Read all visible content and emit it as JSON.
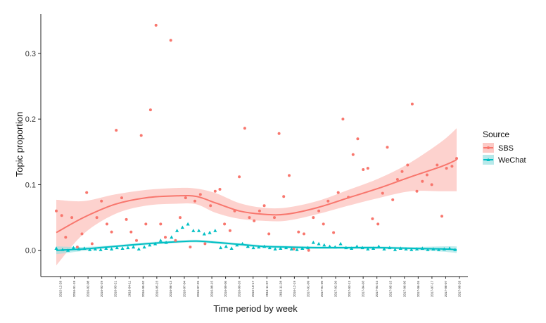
{
  "chart_data": {
    "type": "scatter",
    "title": "",
    "xlabel": "Time period by week",
    "ylabel": "Topic proportion",
    "ylim": [
      -0.04,
      0.36
    ],
    "yticks": [
      0.0,
      0.1,
      0.2,
      0.3
    ],
    "ytick_labels": [
      "0.0",
      "0.1",
      "0.2",
      "0.3"
    ],
    "grid": false,
    "legend": {
      "title": "Source",
      "position": "right",
      "entries": [
        "SBS",
        "WeChat"
      ]
    },
    "x_tick_labels": [
      "2015-12-28",
      "2016-01-18",
      "2016-02-08",
      "2016-02-29",
      "2016-03-21",
      "2016-04-11",
      "2016-05-02",
      "2016-05-23",
      "2016-06-13",
      "2016-07-04",
      "2016-07-25",
      "2016-08-15",
      "2016-09-05",
      "2016-09-26",
      "2016-10-17",
      "2016-11-07",
      "2016-11-28",
      "2016-12-19",
      "2017-01-09",
      "2017-01-30",
      "2017-02-20",
      "2017-03-13",
      "2017-04-03",
      "2017-04-24",
      "2017-05-15",
      "2017-06-05",
      "2017-06-26",
      "2017-07-17",
      "2017-08-07",
      "2017-08-28"
    ],
    "series": [
      {
        "name": "SBS",
        "color": "#f8766d",
        "marker": "circle",
        "points": [
          [
            0.5,
            0.06
          ],
          [
            1.2,
            0.053
          ],
          [
            1.7,
            0.02
          ],
          [
            2.5,
            0.05
          ],
          [
            3.2,
            0.005
          ],
          [
            3.8,
            0.025
          ],
          [
            4.4,
            0.088
          ],
          [
            5.1,
            0.01
          ],
          [
            5.7,
            0.05
          ],
          [
            6.3,
            0.075
          ],
          [
            7.0,
            0.04
          ],
          [
            7.6,
            0.028
          ],
          [
            8.2,
            0.183
          ],
          [
            8.9,
            0.08
          ],
          [
            9.5,
            0.047
          ],
          [
            10.1,
            0.028
          ],
          [
            10.8,
            0.015
          ],
          [
            11.4,
            0.175
          ],
          [
            12.0,
            0.04
          ],
          [
            12.6,
            0.214
          ],
          [
            13.3,
            0.343
          ],
          [
            13.9,
            0.04
          ],
          [
            14.5,
            0.02
          ],
          [
            15.2,
            0.32
          ],
          [
            15.8,
            0.015
          ],
          [
            16.4,
            0.05
          ],
          [
            17.1,
            0.08
          ],
          [
            17.7,
            0.005
          ],
          [
            18.3,
            0.075
          ],
          [
            19.0,
            0.085
          ],
          [
            19.6,
            0.01
          ],
          [
            20.3,
            0.068
          ],
          [
            20.9,
            0.09
          ],
          [
            21.5,
            0.093
          ],
          [
            22.1,
            0.04
          ],
          [
            22.8,
            0.03
          ],
          [
            23.4,
            0.06
          ],
          [
            24.0,
            0.112
          ],
          [
            24.7,
            0.186
          ],
          [
            25.3,
            0.05
          ],
          [
            25.9,
            0.045
          ],
          [
            26.6,
            0.06
          ],
          [
            27.2,
            0.068
          ],
          [
            27.8,
            0.025
          ],
          [
            28.5,
            0.05
          ],
          [
            29.1,
            0.178
          ],
          [
            29.7,
            0.082
          ],
          [
            30.4,
            0.114
          ],
          [
            31.0,
            0.002
          ],
          [
            31.6,
            0.028
          ],
          [
            32.3,
            0.025
          ],
          [
            32.9,
            0.0
          ],
          [
            33.5,
            0.05
          ],
          [
            34.2,
            0.06
          ],
          [
            34.8,
            0.04
          ],
          [
            35.4,
            0.075
          ],
          [
            36.1,
            0.027
          ],
          [
            36.7,
            0.088
          ],
          [
            37.3,
            0.2
          ],
          [
            38.0,
            0.081
          ],
          [
            38.6,
            0.146
          ],
          [
            39.2,
            0.17
          ],
          [
            39.9,
            0.123
          ],
          [
            40.5,
            0.125
          ],
          [
            41.1,
            0.048
          ],
          [
            41.8,
            0.04
          ],
          [
            42.4,
            0.087
          ],
          [
            43.0,
            0.157
          ],
          [
            43.7,
            0.077
          ],
          [
            44.3,
            0.108
          ],
          [
            44.9,
            0.12
          ],
          [
            45.6,
            0.13
          ],
          [
            46.2,
            0.223
          ],
          [
            46.8,
            0.09
          ],
          [
            47.5,
            0.105
          ],
          [
            48.1,
            0.115
          ],
          [
            48.7,
            0.1
          ],
          [
            49.4,
            0.13
          ],
          [
            50.0,
            0.052
          ],
          [
            50.6,
            0.125
          ],
          [
            51.3,
            0.128
          ],
          [
            51.9,
            0.14
          ]
        ]
      },
      {
        "name": "WeChat",
        "color": "#00bfc4",
        "marker": "triangle",
        "points": [
          [
            0.5,
            0.003
          ],
          [
            1.3,
            0.001
          ],
          [
            2.0,
            0.0
          ],
          [
            2.7,
            0.004
          ],
          [
            3.4,
            0.002
          ],
          [
            4.1,
            0.003
          ],
          [
            4.8,
            0.001
          ],
          [
            5.5,
            0.002
          ],
          [
            6.2,
            0.001
          ],
          [
            6.9,
            0.003
          ],
          [
            7.6,
            0.002
          ],
          [
            8.3,
            0.004
          ],
          [
            9.0,
            0.003
          ],
          [
            9.7,
            0.004
          ],
          [
            10.4,
            0.005
          ],
          [
            11.1,
            0.002
          ],
          [
            11.8,
            0.005
          ],
          [
            12.5,
            0.008
          ],
          [
            13.2,
            0.01
          ],
          [
            13.9,
            0.015
          ],
          [
            14.6,
            0.012
          ],
          [
            15.3,
            0.02
          ],
          [
            16.0,
            0.03
          ],
          [
            16.7,
            0.035
          ],
          [
            17.4,
            0.04
          ],
          [
            18.1,
            0.03
          ],
          [
            18.8,
            0.03
          ],
          [
            19.5,
            0.025
          ],
          [
            20.2,
            0.027
          ],
          [
            20.9,
            0.03
          ],
          [
            21.6,
            0.004
          ],
          [
            22.3,
            0.006
          ],
          [
            23.0,
            0.003
          ],
          [
            23.7,
            0.008
          ],
          [
            24.4,
            0.01
          ],
          [
            25.1,
            0.006
          ],
          [
            25.8,
            0.004
          ],
          [
            26.5,
            0.005
          ],
          [
            27.2,
            0.006
          ],
          [
            27.9,
            0.004
          ],
          [
            28.6,
            0.002
          ],
          [
            29.3,
            0.003
          ],
          [
            30.0,
            0.004
          ],
          [
            30.7,
            0.002
          ],
          [
            31.4,
            0.001
          ],
          [
            32.1,
            0.003
          ],
          [
            32.8,
            0.004
          ],
          [
            33.5,
            0.012
          ],
          [
            34.2,
            0.01
          ],
          [
            34.9,
            0.008
          ],
          [
            35.6,
            0.006
          ],
          [
            36.3,
            0.005
          ],
          [
            37.0,
            0.01
          ],
          [
            37.7,
            0.004
          ],
          [
            38.4,
            0.003
          ],
          [
            39.1,
            0.006
          ],
          [
            39.8,
            0.004
          ],
          [
            40.5,
            0.002
          ],
          [
            41.2,
            0.003
          ],
          [
            41.9,
            0.006
          ],
          [
            42.6,
            0.002
          ],
          [
            43.3,
            0.004
          ],
          [
            44.0,
            0.001
          ],
          [
            44.7,
            0.003
          ],
          [
            45.4,
            0.002
          ],
          [
            46.1,
            0.001
          ],
          [
            46.8,
            0.002
          ],
          [
            47.5,
            0.003
          ],
          [
            48.2,
            0.001
          ],
          [
            48.9,
            0.002
          ],
          [
            49.6,
            0.001
          ],
          [
            50.3,
            0.002
          ],
          [
            51.0,
            0.003
          ],
          [
            51.7,
            0.001
          ]
        ]
      }
    ],
    "smooth": [
      {
        "name": "SBS",
        "color": "#f8766d",
        "band_color": "#fbb4ae",
        "x": [
          0.5,
          4,
          8,
          12,
          16,
          18.5,
          21,
          24,
          27,
          30,
          34,
          38,
          42,
          46,
          50,
          51.9
        ],
        "y": [
          0.027,
          0.05,
          0.07,
          0.08,
          0.083,
          0.082,
          0.072,
          0.06,
          0.055,
          0.055,
          0.065,
          0.08,
          0.095,
          0.112,
          0.128,
          0.138
        ],
        "half_width": [
          0.05,
          0.025,
          0.015,
          0.012,
          0.012,
          0.012,
          0.015,
          0.012,
          0.01,
          0.01,
          0.01,
          0.012,
          0.015,
          0.022,
          0.038,
          0.048
        ]
      },
      {
        "name": "WeChat",
        "color": "#00bfc4",
        "band_color": "#9adfe1",
        "x": [
          0.5,
          4,
          8,
          12,
          16,
          18.5,
          21,
          24,
          27,
          30,
          34,
          38,
          42,
          46,
          50,
          51.9
        ],
        "y": [
          0.0,
          0.002,
          0.006,
          0.01,
          0.013,
          0.014,
          0.012,
          0.009,
          0.006,
          0.005,
          0.004,
          0.004,
          0.004,
          0.003,
          0.002,
          0.001
        ],
        "half_width": [
          0.006,
          0.003,
          0.002,
          0.002,
          0.002,
          0.002,
          0.002,
          0.002,
          0.002,
          0.002,
          0.002,
          0.002,
          0.002,
          0.002,
          0.004,
          0.005
        ]
      }
    ]
  }
}
